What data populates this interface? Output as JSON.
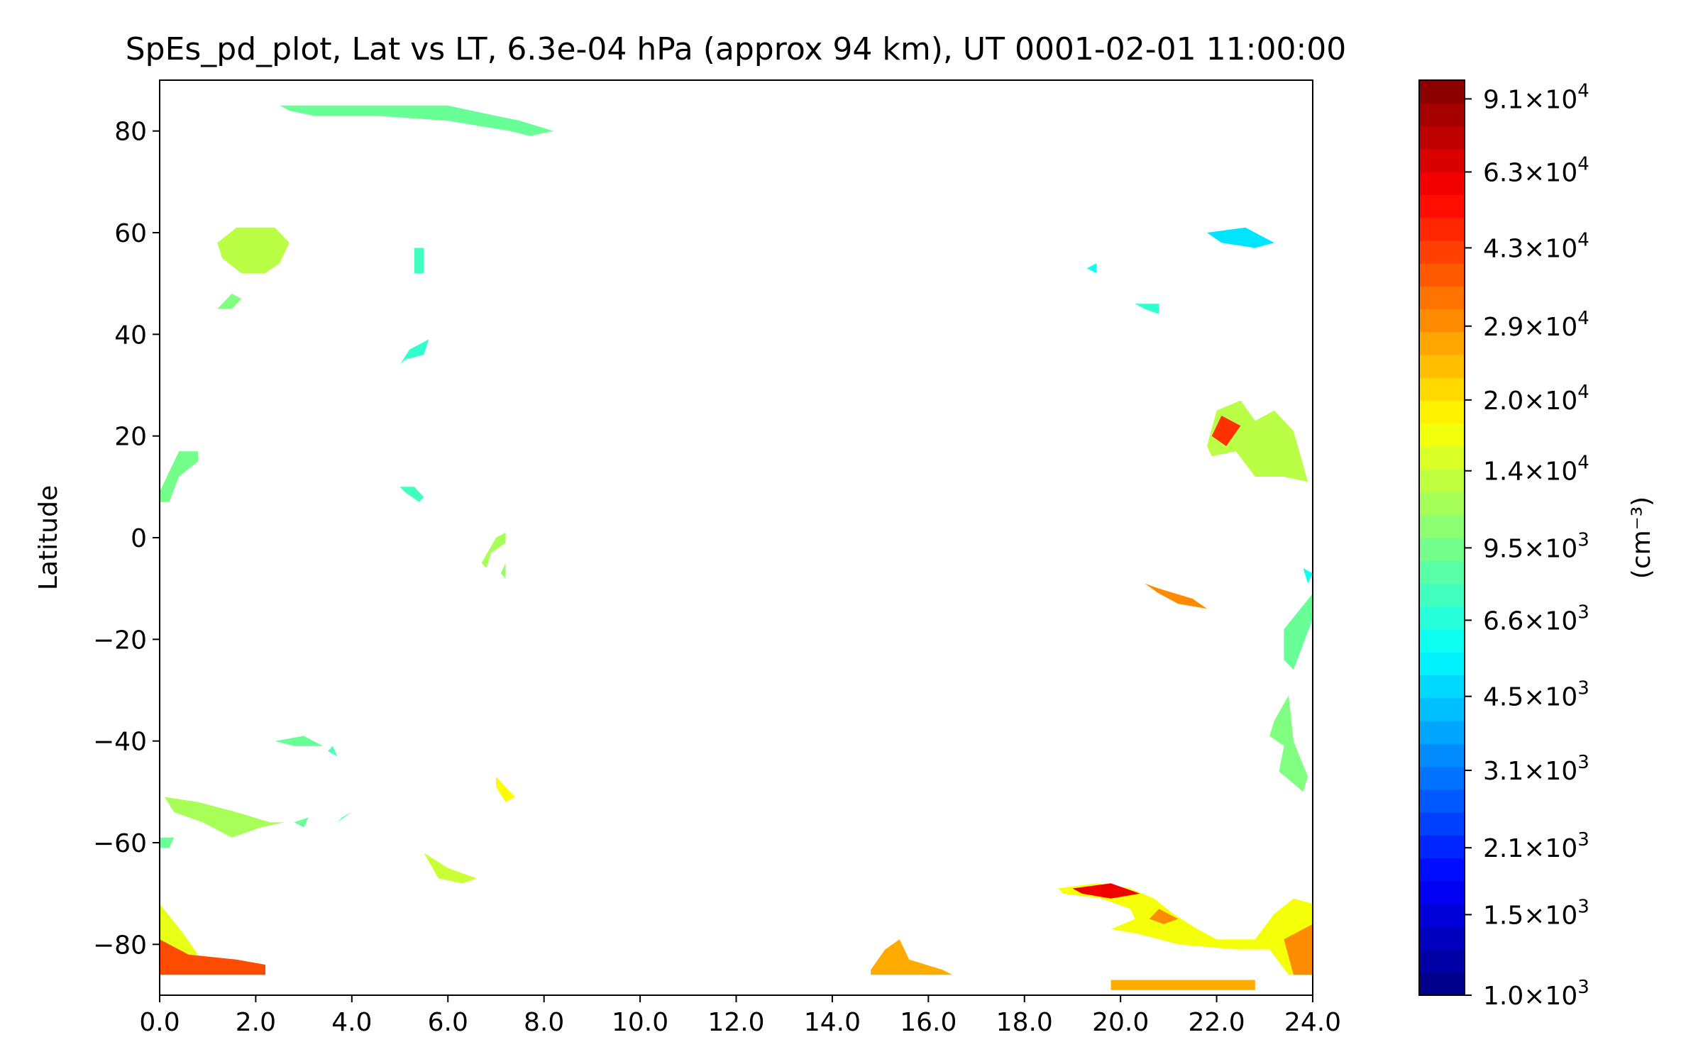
{
  "chart_data": {
    "type": "heatmap",
    "title": "SpEs_pd_plot, Lat vs LT, 6.3e-04 hPa (approx 94 km), UT 0001-02-01 11:00:00",
    "xlabel": "",
    "ylabel": "Latitude",
    "colorbar_label": "(cm⁻³)",
    "colormap": "jet",
    "xlim": [
      0,
      24
    ],
    "ylim": [
      -90,
      90
    ],
    "color_scale": "log",
    "clim": [
      1000,
      100000
    ],
    "x_ticks": [
      0,
      2,
      4,
      6,
      8,
      10,
      12,
      14,
      16,
      18,
      20,
      22,
      24
    ],
    "x_tick_labels": [
      "0.0",
      "2.0",
      "4.0",
      "6.0",
      "8.0",
      "10.0",
      "12.0",
      "14.0",
      "16.0",
      "18.0",
      "20.0",
      "22.0",
      "24.0"
    ],
    "y_ticks": [
      80,
      60,
      40,
      20,
      0,
      -20,
      -40,
      -60,
      -80
    ],
    "y_tick_labels": [
      "80",
      "60",
      "40",
      "20",
      "0",
      "−20",
      "−40",
      "−60",
      "−80"
    ],
    "colorbar_ticks": [
      {
        "value": 91000,
        "mantissa": "9.1",
        "exp": "4"
      },
      {
        "value": 63000,
        "mantissa": "6.3",
        "exp": "4"
      },
      {
        "value": 43000,
        "mantissa": "4.3",
        "exp": "4"
      },
      {
        "value": 29000,
        "mantissa": "2.9",
        "exp": "4"
      },
      {
        "value": 20000,
        "mantissa": "2.0",
        "exp": "4"
      },
      {
        "value": 14000,
        "mantissa": "1.4",
        "exp": "4"
      },
      {
        "value": 9500,
        "mantissa": "9.5",
        "exp": "3"
      },
      {
        "value": 6600,
        "mantissa": "6.6",
        "exp": "3"
      },
      {
        "value": 4500,
        "mantissa": "4.5",
        "exp": "3"
      },
      {
        "value": 3100,
        "mantissa": "3.1",
        "exp": "3"
      },
      {
        "value": 2100,
        "mantissa": "2.1",
        "exp": "3"
      },
      {
        "value": 1500,
        "mantissa": "1.5",
        "exp": "3"
      },
      {
        "value": 1000,
        "mantissa": "1.0",
        "exp": "3"
      }
    ],
    "regions": [
      {
        "points": [
          [
            2.5,
            85
          ],
          [
            6,
            85
          ],
          [
            7,
            83
          ],
          [
            7.5,
            82
          ],
          [
            8.2,
            80
          ],
          [
            7.7,
            79
          ],
          [
            7.3,
            80
          ],
          [
            6,
            82
          ],
          [
            4.5,
            83
          ],
          [
            3.2,
            83
          ],
          [
            2.7,
            84
          ]
        ],
        "value": 9000
      },
      {
        "points": [
          [
            1.2,
            58
          ],
          [
            1.6,
            61
          ],
          [
            2.4,
            61
          ],
          [
            2.7,
            58
          ],
          [
            2.5,
            54
          ],
          [
            2.2,
            52
          ],
          [
            1.7,
            52
          ],
          [
            1.3,
            55
          ]
        ],
        "value": 13000
      },
      {
        "points": [
          [
            1.2,
            45
          ],
          [
            1.5,
            48
          ],
          [
            1.7,
            47
          ],
          [
            1.5,
            45
          ]
        ],
        "value": 10000
      },
      {
        "points": [
          [
            5.3,
            57
          ],
          [
            5.5,
            57
          ],
          [
            5.5,
            52
          ],
          [
            5.3,
            52
          ]
        ],
        "value": 7500
      },
      {
        "points": [
          [
            5,
            34
          ],
          [
            5.2,
            37
          ],
          [
            5.6,
            39
          ],
          [
            5.5,
            36
          ],
          [
            5.1,
            35
          ]
        ],
        "value": 7000
      },
      {
        "points": [
          [
            0,
            9
          ],
          [
            0.4,
            17
          ],
          [
            0.8,
            17
          ],
          [
            0.8,
            15
          ],
          [
            0.4,
            12
          ],
          [
            0.2,
            7
          ],
          [
            0,
            7
          ]
        ],
        "value": 9500
      },
      {
        "points": [
          [
            5,
            10
          ],
          [
            5.3,
            10
          ],
          [
            5.5,
            8
          ],
          [
            5.4,
            7
          ],
          [
            5.1,
            9
          ]
        ],
        "value": 7500
      },
      {
        "points": [
          [
            6.7,
            -5
          ],
          [
            7,
            0
          ],
          [
            7.2,
            1
          ],
          [
            7.2,
            -1
          ],
          [
            6.9,
            -3
          ],
          [
            6.8,
            -6
          ]
        ],
        "value": 12000
      },
      {
        "points": [
          [
            7.1,
            -7
          ],
          [
            7.2,
            -5
          ],
          [
            7.2,
            -8
          ]
        ],
        "value": 11000
      },
      {
        "points": [
          [
            20.5,
            -9
          ],
          [
            20.8,
            -11
          ],
          [
            21.2,
            -13
          ],
          [
            21.8,
            -14
          ],
          [
            21.5,
            -12
          ],
          [
            20.8,
            -10
          ]
        ],
        "value": 30000
      },
      {
        "points": [
          [
            21.8,
            18
          ],
          [
            22,
            25
          ],
          [
            22.5,
            27
          ],
          [
            22.8,
            23
          ],
          [
            23.2,
            25
          ],
          [
            23.6,
            21
          ],
          [
            23.9,
            11
          ],
          [
            23.4,
            12
          ],
          [
            22.8,
            12
          ],
          [
            22.4,
            17
          ],
          [
            21.9,
            16
          ]
        ],
        "value": 13000
      },
      {
        "points": [
          [
            21.9,
            20
          ],
          [
            22.1,
            24
          ],
          [
            22.5,
            22
          ],
          [
            22.2,
            18
          ]
        ],
        "value": 45000
      },
      {
        "points": [
          [
            21.8,
            60
          ],
          [
            22.6,
            61
          ],
          [
            23.2,
            58
          ],
          [
            22.8,
            57
          ],
          [
            22.1,
            58
          ]
        ],
        "value": 5000
      },
      {
        "points": [
          [
            19.3,
            53
          ],
          [
            19.5,
            54
          ],
          [
            19.5,
            52
          ]
        ],
        "value": 6000
      },
      {
        "points": [
          [
            20.3,
            46
          ],
          [
            20.8,
            46
          ],
          [
            20.8,
            44
          ],
          [
            20.5,
            45
          ]
        ],
        "value": 7000
      },
      {
        "points": [
          [
            23.8,
            -6
          ],
          [
            24,
            -7
          ],
          [
            23.9,
            -9
          ]
        ],
        "value": 6000
      },
      {
        "points": [
          [
            23.4,
            -18
          ],
          [
            24,
            -11
          ],
          [
            24,
            -16
          ],
          [
            23.6,
            -26
          ],
          [
            23.4,
            -24
          ]
        ],
        "value": 9000
      },
      {
        "points": [
          [
            23.2,
            -36
          ],
          [
            23.5,
            -31
          ],
          [
            23.6,
            -40
          ],
          [
            23.9,
            -47
          ],
          [
            23.8,
            -50
          ],
          [
            23.3,
            -46
          ],
          [
            23.4,
            -41
          ],
          [
            23.1,
            -39
          ]
        ],
        "value": 10000
      },
      {
        "points": [
          [
            2.4,
            -40
          ],
          [
            3,
            -39
          ],
          [
            3.4,
            -41
          ],
          [
            2.8,
            -41
          ]
        ],
        "value": 9000
      },
      {
        "points": [
          [
            3.5,
            -42
          ],
          [
            3.7,
            -43
          ],
          [
            3.6,
            -41
          ]
        ],
        "value": 8000
      },
      {
        "points": [
          [
            0.1,
            -51
          ],
          [
            0.8,
            -52
          ],
          [
            1.6,
            -54
          ],
          [
            2.3,
            -56
          ],
          [
            2.6,
            -56
          ],
          [
            2.1,
            -57
          ],
          [
            1.5,
            -59
          ],
          [
            0.9,
            -56
          ],
          [
            0.3,
            -54
          ]
        ],
        "value": 12000
      },
      {
        "points": [
          [
            2.8,
            -56
          ],
          [
            3.1,
            -55
          ],
          [
            3,
            -57
          ]
        ],
        "value": 9000
      },
      {
        "points": [
          [
            3.7,
            -56
          ],
          [
            4,
            -54
          ],
          [
            3.8,
            -55
          ]
        ],
        "value": 8000
      },
      {
        "points": [
          [
            0,
            -59
          ],
          [
            0.3,
            -59
          ],
          [
            0.2,
            -61
          ],
          [
            0,
            -61
          ]
        ],
        "value": 9000
      },
      {
        "points": [
          [
            7,
            -47
          ],
          [
            7.2,
            -49
          ],
          [
            7.4,
            -51
          ],
          [
            7.2,
            -52
          ],
          [
            7,
            -49
          ]
        ],
        "value": 18000
      },
      {
        "points": [
          [
            5.5,
            -62
          ],
          [
            6,
            -65
          ],
          [
            6.6,
            -67
          ],
          [
            6.3,
            -68
          ],
          [
            5.8,
            -67
          ]
        ],
        "value": 14000
      },
      {
        "points": [
          [
            0,
            -72
          ],
          [
            0.5,
            -78
          ],
          [
            0.8,
            -82
          ],
          [
            0.5,
            -83
          ],
          [
            0,
            -80
          ]
        ],
        "value": 16000
      },
      {
        "points": [
          [
            0,
            -79
          ],
          [
            0.6,
            -82
          ],
          [
            1.6,
            -83
          ],
          [
            2.2,
            -84
          ],
          [
            2.2,
            -86
          ],
          [
            0,
            -86
          ]
        ],
        "value": 40000
      },
      {
        "points": [
          [
            14.8,
            -85
          ],
          [
            15.1,
            -81
          ],
          [
            15.4,
            -79
          ],
          [
            15.6,
            -83
          ],
          [
            16.3,
            -85
          ],
          [
            16.5,
            -86
          ],
          [
            14.8,
            -86
          ]
        ],
        "value": 26000
      },
      {
        "points": [
          [
            18.7,
            -69
          ],
          [
            19.5,
            -68
          ],
          [
            20.2,
            -69
          ],
          [
            20.7,
            -71
          ],
          [
            21.1,
            -74
          ],
          [
            21.6,
            -77
          ],
          [
            22,
            -79
          ],
          [
            22.8,
            -79
          ],
          [
            23.2,
            -74
          ],
          [
            23.6,
            -71
          ],
          [
            24,
            -72
          ],
          [
            24,
            -86
          ],
          [
            23.5,
            -86
          ],
          [
            23.1,
            -81
          ],
          [
            22.4,
            -81
          ],
          [
            21.2,
            -80
          ],
          [
            20.4,
            -78
          ],
          [
            19.8,
            -77
          ],
          [
            20.3,
            -75
          ],
          [
            20.2,
            -73
          ],
          [
            19.6,
            -71
          ],
          [
            18.8,
            -70
          ]
        ],
        "value": 17000
      },
      {
        "points": [
          [
            19,
            -69
          ],
          [
            19.8,
            -68
          ],
          [
            20.4,
            -70
          ],
          [
            19.8,
            -71
          ],
          [
            19.2,
            -70
          ]
        ],
        "value": 60000
      },
      {
        "points": [
          [
            20.8,
            -73
          ],
          [
            21.2,
            -75
          ],
          [
            20.9,
            -76
          ],
          [
            20.6,
            -75
          ]
        ],
        "value": 30000
      },
      {
        "points": [
          [
            23.4,
            -79
          ],
          [
            24,
            -76
          ],
          [
            24,
            -86
          ],
          [
            23.6,
            -86
          ]
        ],
        "value": 30000
      },
      {
        "points": [
          [
            19.8,
            -87
          ],
          [
            22.8,
            -87
          ],
          [
            22.8,
            -89
          ],
          [
            19.8,
            -89
          ]
        ],
        "value": 26000
      }
    ]
  }
}
